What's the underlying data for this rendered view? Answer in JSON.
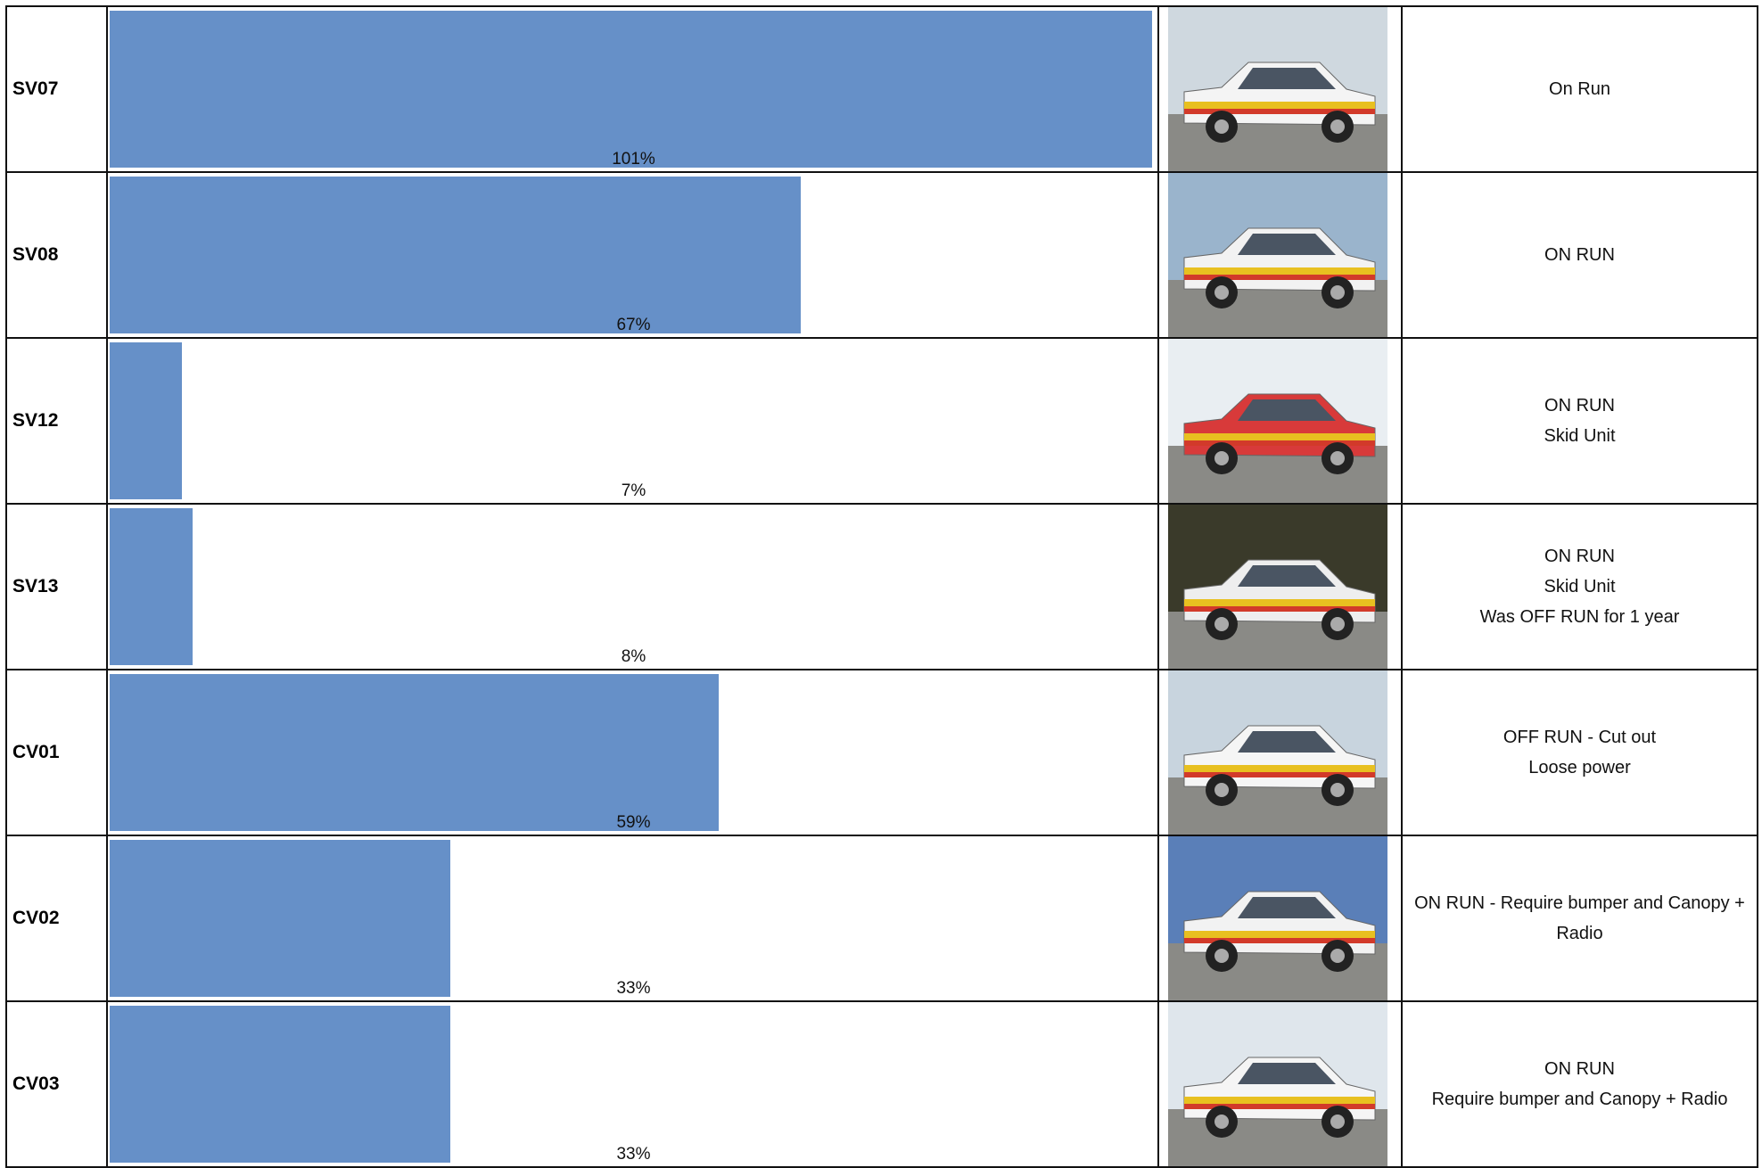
{
  "table": {
    "rows": [
      {
        "id": "SV07",
        "percent": 101,
        "percent_label": "101%",
        "status": [
          "On Run"
        ]
      },
      {
        "id": "SV08",
        "percent": 67,
        "percent_label": "67%",
        "status": [
          "ON RUN"
        ]
      },
      {
        "id": "SV12",
        "percent": 7,
        "percent_label": "7%",
        "status": [
          "ON RUN",
          "Skid Unit"
        ]
      },
      {
        "id": "SV13",
        "percent": 8,
        "percent_label": "8%",
        "status": [
          "ON RUN",
          "Skid Unit",
          "Was OFF RUN for 1 year"
        ]
      },
      {
        "id": "CV01",
        "percent": 59,
        "percent_label": "59%",
        "status": [
          "OFF RUN - Cut out",
          "Loose power"
        ]
      },
      {
        "id": "CV02",
        "percent": 33,
        "percent_label": "33%",
        "status": [
          "ON RUN - Require bumper and Canopy + Radio"
        ]
      },
      {
        "id": "CV03",
        "percent": 33,
        "percent_label": "33%",
        "status": [
          "ON RUN",
          "Require bumper and Canopy + Radio"
        ]
      }
    ]
  }
}
